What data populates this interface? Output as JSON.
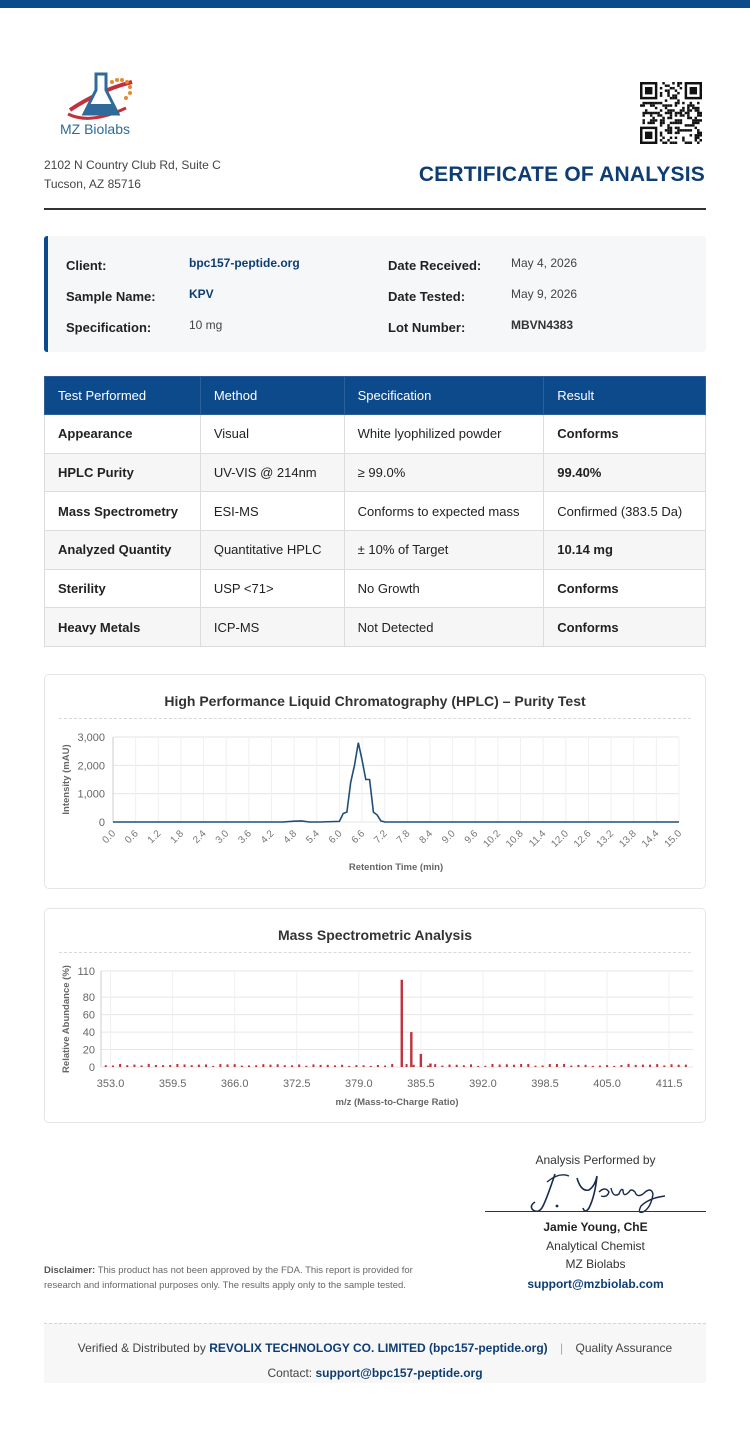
{
  "company": {
    "name": "MZ Biolabs",
    "address_line1": "2102 N Country Club Rd, Suite C",
    "address_line2": "Tucson, AZ 85716"
  },
  "document_title": "CERTIFICATE OF ANALYSIS",
  "info": {
    "client_label": "Client:",
    "client": "bpc157-peptide.org",
    "sample_label": "Sample Name:",
    "sample": "KPV",
    "spec_label": "Specification:",
    "spec": "10 mg",
    "received_label": "Date Received:",
    "received": "May 4, 2026",
    "tested_label": "Date Tested:",
    "tested": "May 9, 2026",
    "lot_label": "Lot Number:",
    "lot": "MBVN4383"
  },
  "results_table": {
    "headers": [
      "Test Performed",
      "Method",
      "Specification",
      "Result"
    ],
    "rows": [
      {
        "test": "Appearance",
        "method": "Visual",
        "spec": "White lyophilized powder",
        "result": "Conforms"
      },
      {
        "test": "HPLC Purity",
        "method": "UV-VIS @ 214nm",
        "spec": "≥ 99.0%",
        "result": "99.40%"
      },
      {
        "test": "Mass Spectrometry",
        "method": "ESI-MS",
        "spec": "Conforms to expected mass",
        "result": "Confirmed (383.5 Da)"
      },
      {
        "test": "Analyzed Quantity",
        "method": "Quantitative HPLC",
        "spec": "± 10% of Target",
        "result": "10.14 mg"
      },
      {
        "test": "Sterility",
        "method": "USP <71>",
        "spec": "No Growth",
        "result": "Conforms"
      },
      {
        "test": "Heavy Metals",
        "method": "ICP-MS",
        "spec": "Not Detected",
        "result": "Conforms"
      }
    ]
  },
  "chart_data": [
    {
      "type": "line",
      "title": "High Performance Liquid Chromatography (HPLC) – Purity Test",
      "xlabel": "Retention Time (min)",
      "ylabel": "Intensity (mAU)",
      "xlim": [
        0,
        15
      ],
      "ylim": [
        0,
        3000
      ],
      "x_ticks": [
        "0.0",
        "0.6",
        "1.2",
        "1.8",
        "2.4",
        "3.0",
        "3.6",
        "4.2",
        "4.8",
        "5.4",
        "6.0",
        "6.6",
        "7.2",
        "7.8",
        "8.4",
        "9.0",
        "9.6",
        "10.2",
        "10.8",
        "11.4",
        "12.0",
        "12.6",
        "13.2",
        "13.8",
        "14.4",
        "15.0"
      ],
      "y_ticks": [
        "0",
        "1,000",
        "2,000",
        "3,000"
      ],
      "grid": true,
      "series": [
        {
          "color": "#1f4e79",
          "x": [
            0,
            4.5,
            4.8,
            5.0,
            5.2,
            5.5,
            6.0,
            6.1,
            6.2,
            6.3,
            6.4,
            6.5,
            6.6,
            6.7,
            6.8,
            6.9,
            7.0,
            7.1,
            7.2,
            7.5,
            15.0
          ],
          "y": [
            0,
            0,
            30,
            40,
            0,
            0,
            20,
            300,
            350,
            1400,
            2000,
            2800,
            2200,
            1500,
            1500,
            350,
            250,
            40,
            0,
            0,
            0
          ]
        }
      ]
    },
    {
      "type": "bar",
      "title": "Mass Spectrometric Analysis",
      "xlabel": "m/z (Mass-to-Charge Ratio)",
      "ylabel": "Relative Abundance (%)",
      "xlim": [
        352,
        414
      ],
      "ylim": [
        0,
        110
      ],
      "x_ticks": [
        "353.0",
        "359.5",
        "366.0",
        "372.5",
        "379.0",
        "385.5",
        "392.0",
        "398.5",
        "405.0",
        "411.5"
      ],
      "y_ticks": [
        "0",
        "20",
        "40",
        "60",
        "80",
        "110"
      ],
      "grid": true,
      "series": [
        {
          "color": "#c0313c",
          "peaks": [
            {
              "mz": 383.5,
              "abundance": 100
            },
            {
              "mz": 384.5,
              "abundance": 40
            },
            {
              "mz": 385.5,
              "abundance": 15
            },
            {
              "mz": 386.5,
              "abundance": 4
            }
          ],
          "baseline_abundance": 2
        }
      ]
    }
  ],
  "signature": {
    "performed_by": "Analysis Performed by",
    "name": "Jamie Young, ChE",
    "role": "Analytical Chemist",
    "org": "MZ Biolabs",
    "email": "support@mzbiolab.com"
  },
  "disclaimer": {
    "label": "Disclaimer:",
    "text": "This product has not been approved by the FDA. This report is provided for research and informational purposes only. The results apply only to the sample tested."
  },
  "footer": {
    "verified_prefix": "Verified & Distributed by",
    "distributor": "REVOLIX TECHNOLOGY CO. LIMITED (bpc157-peptide.org)",
    "separator": "|",
    "qa": "Quality Assurance",
    "contact_label": "Contact:",
    "contact_email": "support@bpc157-peptide.org"
  }
}
